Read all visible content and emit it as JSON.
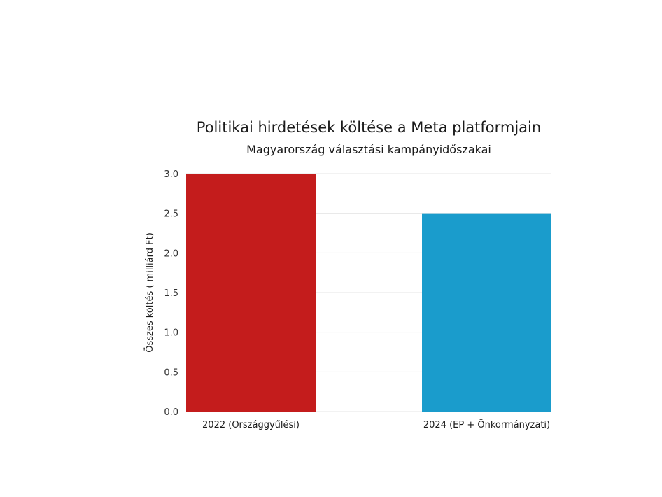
{
  "chart_data": {
    "type": "bar",
    "title": "Politikai hirdetések költése a Meta platformjain",
    "subtitle": "Magyarország választási kampányidőszakai",
    "xlabel": "",
    "ylabel": "Összes költés ( milliárd Ft)",
    "categories": [
      "2022 (Országgyűlési)",
      "2024 (EP + Önkormányzati)"
    ],
    "values": [
      3.0,
      2.5
    ],
    "colors": [
      "#c41c1c",
      "#1a9ccc"
    ],
    "ylim": [
      0,
      3.0
    ],
    "yticks": [
      "0.0",
      "0.5",
      "1.0",
      "1.5",
      "2.0",
      "2.5",
      "3.0"
    ],
    "grid": true,
    "legend": "none"
  }
}
